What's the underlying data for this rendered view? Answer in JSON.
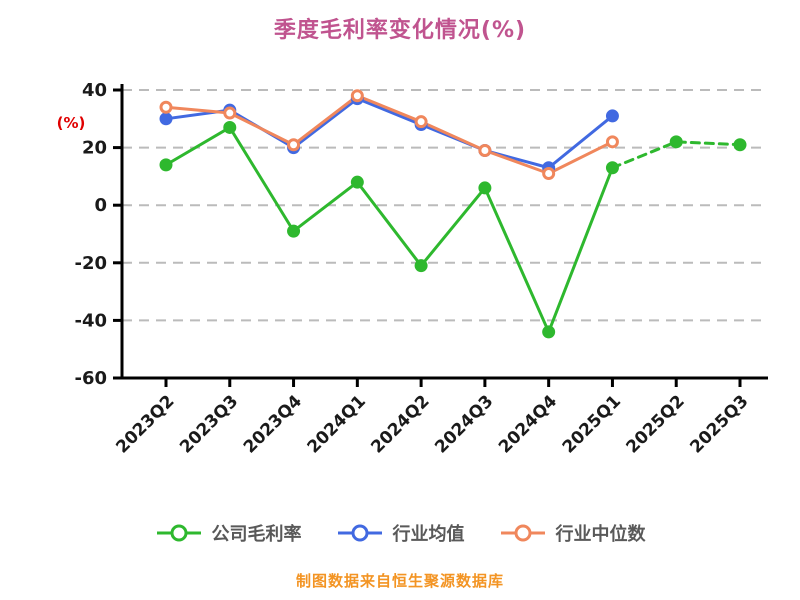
{
  "title": "季度毛利率变化情况(%)",
  "title_color": "#c0548f",
  "y_axis_label_color": "#e00000",
  "footer": "制图数据来自恒生聚源数据库",
  "footer_color": "#f39423",
  "axis_color": "#000000",
  "grid_color": "#bbbbbb",
  "tick_label_color": "#1a1a1a",
  "legend_text_color": "#595959",
  "chart_data": {
    "type": "line",
    "title": "季度毛利率变化情况(%)",
    "xlabel": "",
    "ylabel": "(%)",
    "categories": [
      "2023Q2",
      "2023Q3",
      "2023Q4",
      "2024Q1",
      "2024Q2",
      "2024Q3",
      "2024Q4",
      "2025Q1",
      "2025Q2",
      "2025Q3"
    ],
    "series": [
      {
        "name": "公司毛利率",
        "color": "#2eb82e",
        "marker": "solid",
        "dashed_from_index": 7,
        "values": [
          14,
          27,
          -9,
          8,
          -21,
          6,
          -44,
          13,
          22,
          21
        ]
      },
      {
        "name": "行业均值",
        "color": "#4169e1",
        "marker": "solid",
        "values": [
          30,
          33,
          20,
          37,
          28,
          19,
          13,
          31,
          null,
          null
        ]
      },
      {
        "name": "行业中位数",
        "color": "#f0875c",
        "marker": "hollow",
        "values": [
          34,
          32,
          21,
          38,
          29,
          19,
          11,
          22,
          null,
          null
        ]
      }
    ],
    "ylim": [
      -60,
      40
    ],
    "yticks": [
      40,
      20,
      0,
      -20,
      -40,
      -60
    ],
    "grid": "horizontal dashed",
    "legend_position": "bottom"
  }
}
